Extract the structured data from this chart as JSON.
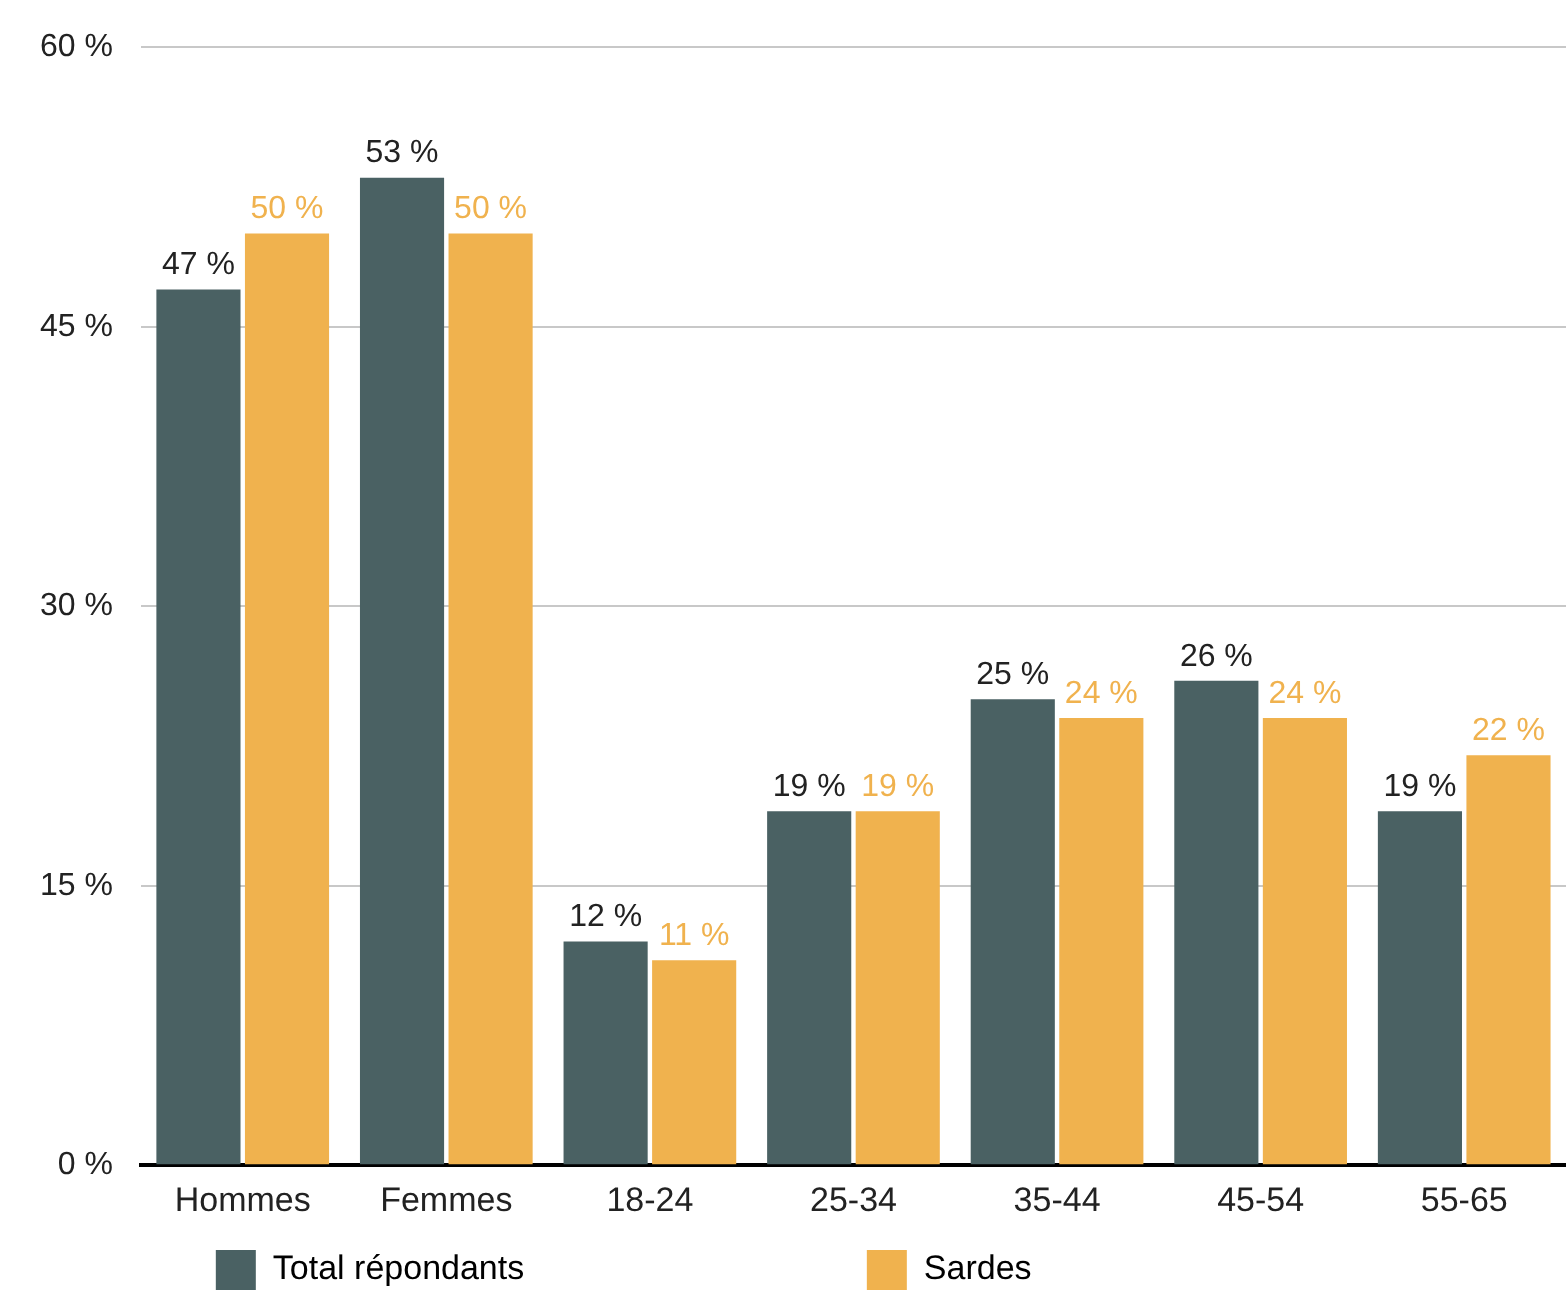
{
  "chart_data": {
    "type": "bar",
    "categories": [
      "Hommes",
      "Femmes",
      "18-24",
      "25-34",
      "35-44",
      "45-54",
      "55-65"
    ],
    "series": [
      {
        "name": "Total répondants",
        "color": "#4a6163",
        "values": [
          47,
          53,
          12,
          19,
          25,
          26,
          19
        ],
        "value_labels": [
          "47 %",
          "53 %",
          "12 %",
          "19 %",
          "25 %",
          "26 %",
          "19 %"
        ]
      },
      {
        "name": "Sardes",
        "color": "#f0b24e",
        "values": [
          50,
          50,
          11,
          19,
          24,
          24,
          22
        ],
        "value_labels": [
          "50 %",
          "50 %",
          "11 %",
          "19 %",
          "24 %",
          "24 %",
          "22 %"
        ]
      }
    ],
    "ylim": [
      0,
      60
    ],
    "yticks": [
      {
        "value": 0,
        "label": "0 %"
      },
      {
        "value": 15,
        "label": "15 %"
      },
      {
        "value": 30,
        "label": "30 %"
      },
      {
        "value": 45,
        "label": "45 %"
      },
      {
        "value": 60,
        "label": "60 %"
      }
    ],
    "grid": "y",
    "legend": "bottom"
  }
}
